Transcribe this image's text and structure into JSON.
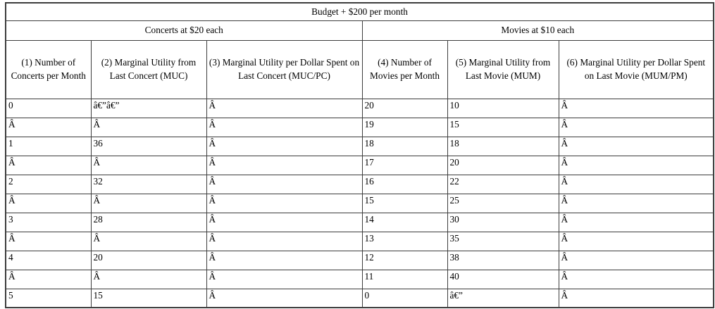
{
  "table": {
    "title": "Budget + $200 per month",
    "sections": [
      {
        "label": "Concerts at $20 each"
      },
      {
        "label": "Movies at $10 each"
      }
    ],
    "columns": [
      "(1) Number of Concerts per Month",
      "(2) Marginal Utility from Last Concert (MUC)",
      "(3) Marginal Utility per Dollar Spent on Last Concert (MUC/PC)",
      "(4) Number of Movies per Month",
      "(5) Marginal Utility from Last Movie (MUM)",
      "(6) Marginal Utility per Dollar Spent on Last Movie (MUM/PM)"
    ],
    "rows": [
      [
        "0",
        "â€”â€”",
        "Â",
        "20",
        "10",
        "Â"
      ],
      [
        "Â",
        "Â",
        "Â",
        "19",
        "15",
        "Â"
      ],
      [
        "1",
        "36",
        "Â",
        "18",
        "18",
        "Â"
      ],
      [
        "Â",
        "Â",
        "Â",
        "17",
        "20",
        "Â"
      ],
      [
        "2",
        "32",
        "Â",
        "16",
        "22",
        "Â"
      ],
      [
        "Â",
        "Â",
        "Â",
        "15",
        "25",
        "Â"
      ],
      [
        "3",
        "28",
        "Â",
        "14",
        "30",
        "Â"
      ],
      [
        "Â",
        "Â",
        "Â",
        "13",
        "35",
        "Â"
      ],
      [
        "4",
        "20",
        "Â",
        "12",
        "38",
        "Â"
      ],
      [
        "Â",
        "Â",
        "Â",
        "11",
        "40",
        "Â"
      ],
      [
        "5",
        "15",
        "Â",
        "0",
        "â€”",
        "Â"
      ]
    ]
  }
}
